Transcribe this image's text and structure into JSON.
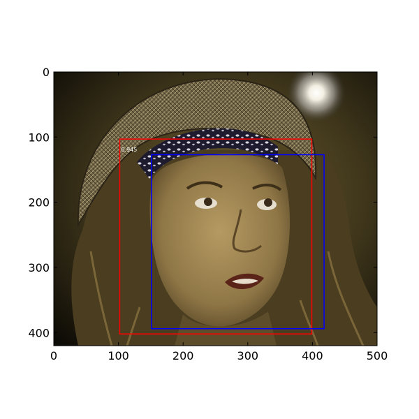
{
  "plot": {
    "xlim": [
      0,
      500
    ],
    "ylim": [
      0,
      420
    ],
    "y_inverted": true,
    "x_ticks": [
      0,
      100,
      200,
      300,
      400,
      500
    ],
    "y_ticks": [
      0,
      100,
      200,
      300,
      400
    ],
    "x_tick_labels": [
      "0",
      "100",
      "200",
      "300",
      "400",
      "500"
    ],
    "y_tick_labels": [
      "0",
      "100",
      "200",
      "300",
      "400"
    ]
  },
  "image": {
    "subject": "woman-face-with-straw-hat-and-bandana"
  },
  "detections": [
    {
      "kind": "prediction",
      "color": "#ff0000",
      "score": "0.945",
      "xmin": 102,
      "ymin": 103,
      "xmax": 399,
      "ymax": 402
    },
    {
      "kind": "ground-truth",
      "color": "#0000ff",
      "xmin": 151,
      "ymin": 127,
      "xmax": 418,
      "ymax": 394
    }
  ]
}
